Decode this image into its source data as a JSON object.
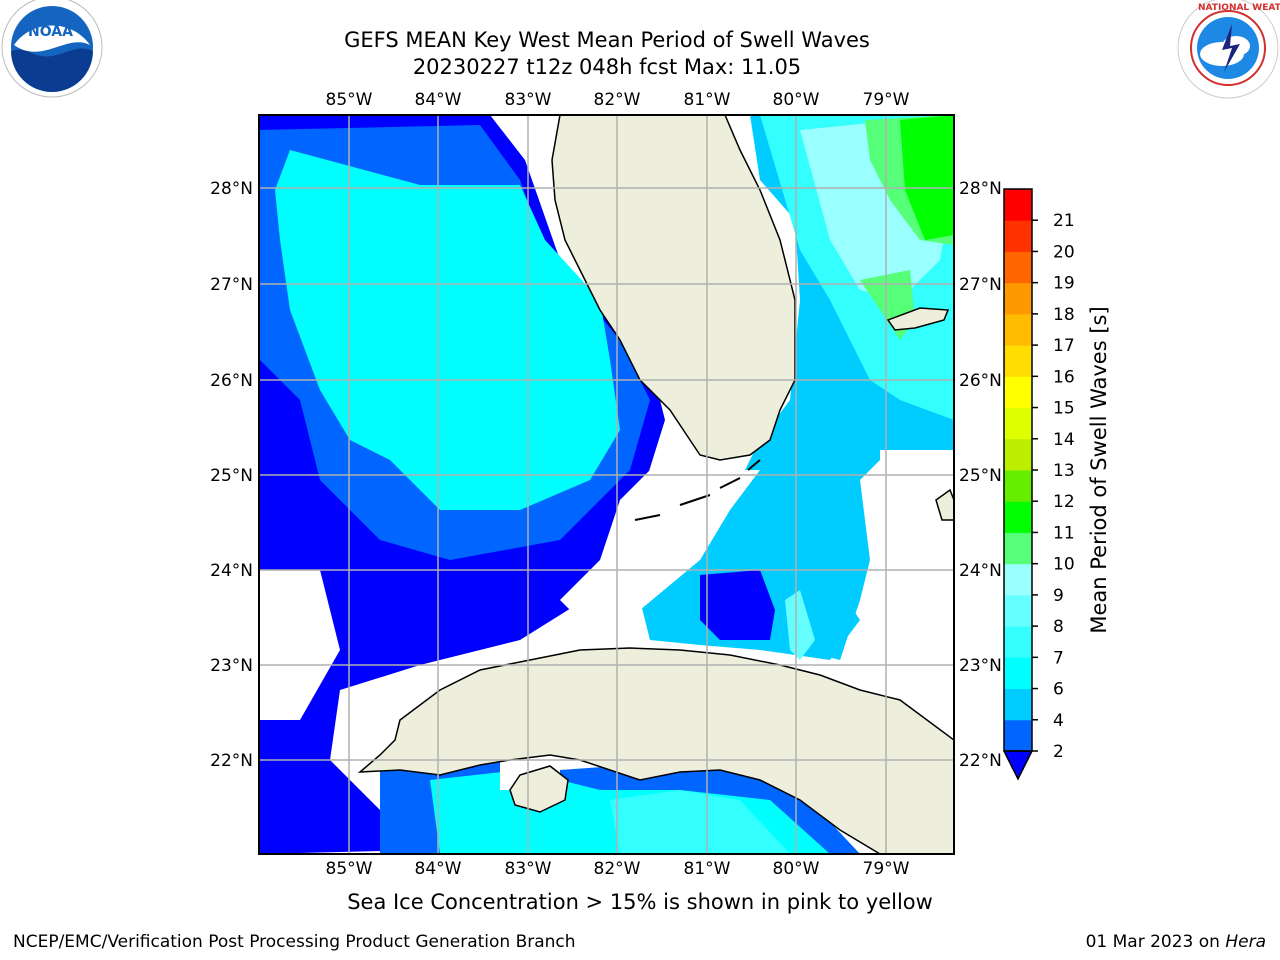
{
  "title": {
    "line1": "GEFS MEAN Key West Mean Period of Swell Waves",
    "line2": "20230227 t12z 048h fcst   Max: 11.05"
  },
  "logos": {
    "left": "noaa-logo",
    "right": "nws-logo"
  },
  "map": {
    "lon_labels": [
      "85°W",
      "84°W",
      "83°W",
      "82°W",
      "81°W",
      "80°W",
      "79°W"
    ],
    "lat_labels": [
      "28°N",
      "27°N",
      "26°N",
      "25°N",
      "24°N",
      "23°N",
      "22°N"
    ],
    "lon_range": [
      -86,
      -78.25
    ],
    "lat_range": [
      21.05,
      28.75
    ],
    "land_color": "#eeeedd",
    "grid_color": "#b0b0b0"
  },
  "colorbar": {
    "label": "Mean Period of Swell Waves [s]",
    "ticks": [
      "2",
      "4",
      "6",
      "7",
      "8",
      "9",
      "10",
      "11",
      "12",
      "13",
      "14",
      "15",
      "16",
      "17",
      "18",
      "19",
      "20",
      "21"
    ],
    "colors": [
      "#0066ff",
      "#00ccff",
      "#00ffff",
      "#33ffff",
      "#66ffff",
      "#99ffff",
      "#55ff77",
      "#00ff00",
      "#66ee00",
      "#bbee00",
      "#ddff00",
      "#ffff00",
      "#ffdd00",
      "#ffbb00",
      "#ff9900",
      "#ff6600",
      "#ff3300",
      "#ff0000"
    ],
    "extend_color": "#0000ff"
  },
  "footer": {
    "ice_note": "Sea Ice Concentration > 15% is shown in pink to yellow",
    "credit": "NCEP/EMC/Verification Post Processing Product Generation Branch",
    "date": "01 Mar 2023 on",
    "host": "Hera"
  }
}
